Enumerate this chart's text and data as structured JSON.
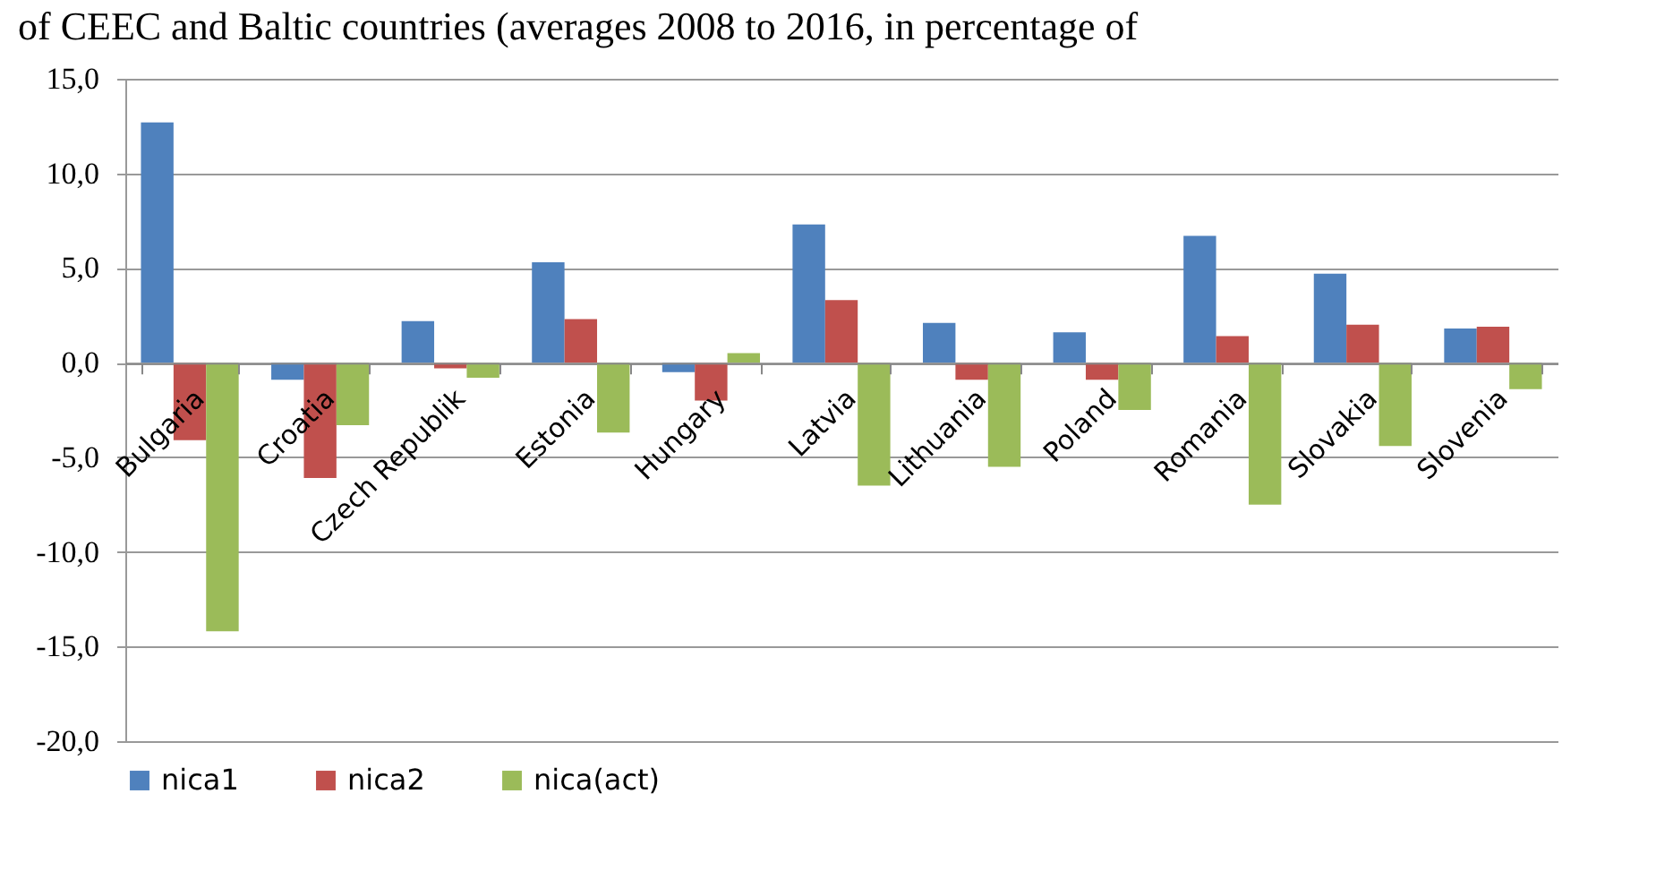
{
  "chart_data": {
    "type": "bar",
    "title": "of CEEC and Baltic countries (averages 2008 to 2016, in percentage of",
    "categories": [
      "Bulgaria",
      "Croatia",
      "Czech Republik",
      "Estonia",
      "Hungary",
      "Latvia",
      "Lithuania",
      "Poland",
      "Romania",
      "Slovakia",
      "Slovenia"
    ],
    "series": [
      {
        "name": "nica1",
        "color": "#4f81bd",
        "values": [
          12.7,
          -0.9,
          2.2,
          5.3,
          -0.5,
          7.3,
          2.1,
          1.6,
          6.7,
          4.7,
          1.8
        ]
      },
      {
        "name": "nica2",
        "color": "#c0504d",
        "values": [
          -4.1,
          -6.1,
          -0.3,
          2.3,
          -2.0,
          3.3,
          -0.9,
          -0.9,
          1.4,
          2.0,
          1.9
        ]
      },
      {
        "name": "nica(act)",
        "color": "#9bbb59",
        "values": [
          -14.2,
          -3.3,
          -0.8,
          -3.7,
          0.5,
          -6.5,
          -5.5,
          -2.5,
          -7.5,
          -4.4,
          -1.4
        ]
      }
    ],
    "ylim": [
      -20,
      15
    ],
    "yticks": [
      {
        "value": -20,
        "label": "-20,0"
      },
      {
        "value": -15,
        "label": "-15,0"
      },
      {
        "value": -10,
        "label": "-10,0"
      },
      {
        "value": -5,
        "label": "-5,0"
      },
      {
        "value": 0,
        "label": "0,0"
      },
      {
        "value": 5,
        "label": "5,0"
      },
      {
        "value": 10,
        "label": "10,0"
      },
      {
        "value": 15,
        "label": "15,0"
      }
    ],
    "grid": "y",
    "legend": "bottom"
  }
}
